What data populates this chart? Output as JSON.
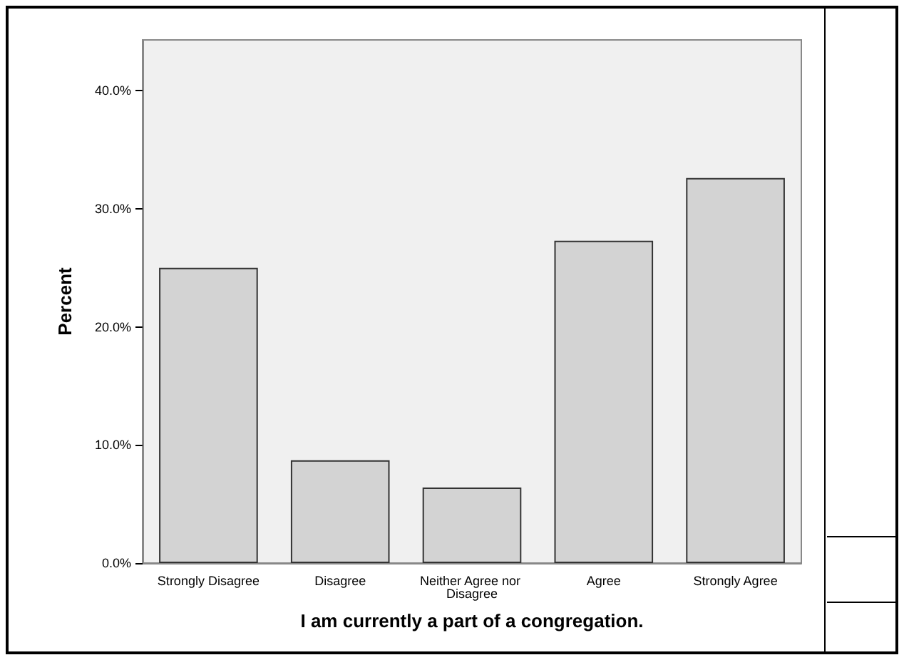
{
  "chart_data": {
    "type": "bar",
    "xlabel": "I am currently a part of a congregation.",
    "ylabel": "Percent",
    "categories": [
      "Strongly Disagree",
      "Disagree",
      "Neither Agree nor Disagree",
      "Agree",
      "Strongly Agree"
    ],
    "values": [
      25.0,
      8.7,
      6.4,
      27.3,
      32.6
    ],
    "color": "#d3d3d3",
    "ylim": [
      0,
      44.3
    ],
    "yticks": [
      {
        "value": 0,
        "label": "0.0%"
      },
      {
        "value": 10,
        "label": "10.0%"
      },
      {
        "value": 20,
        "label": "20.0%"
      },
      {
        "value": 30,
        "label": "30.0%"
      },
      {
        "value": 40,
        "label": "40.0%"
      }
    ],
    "grid": false
  }
}
